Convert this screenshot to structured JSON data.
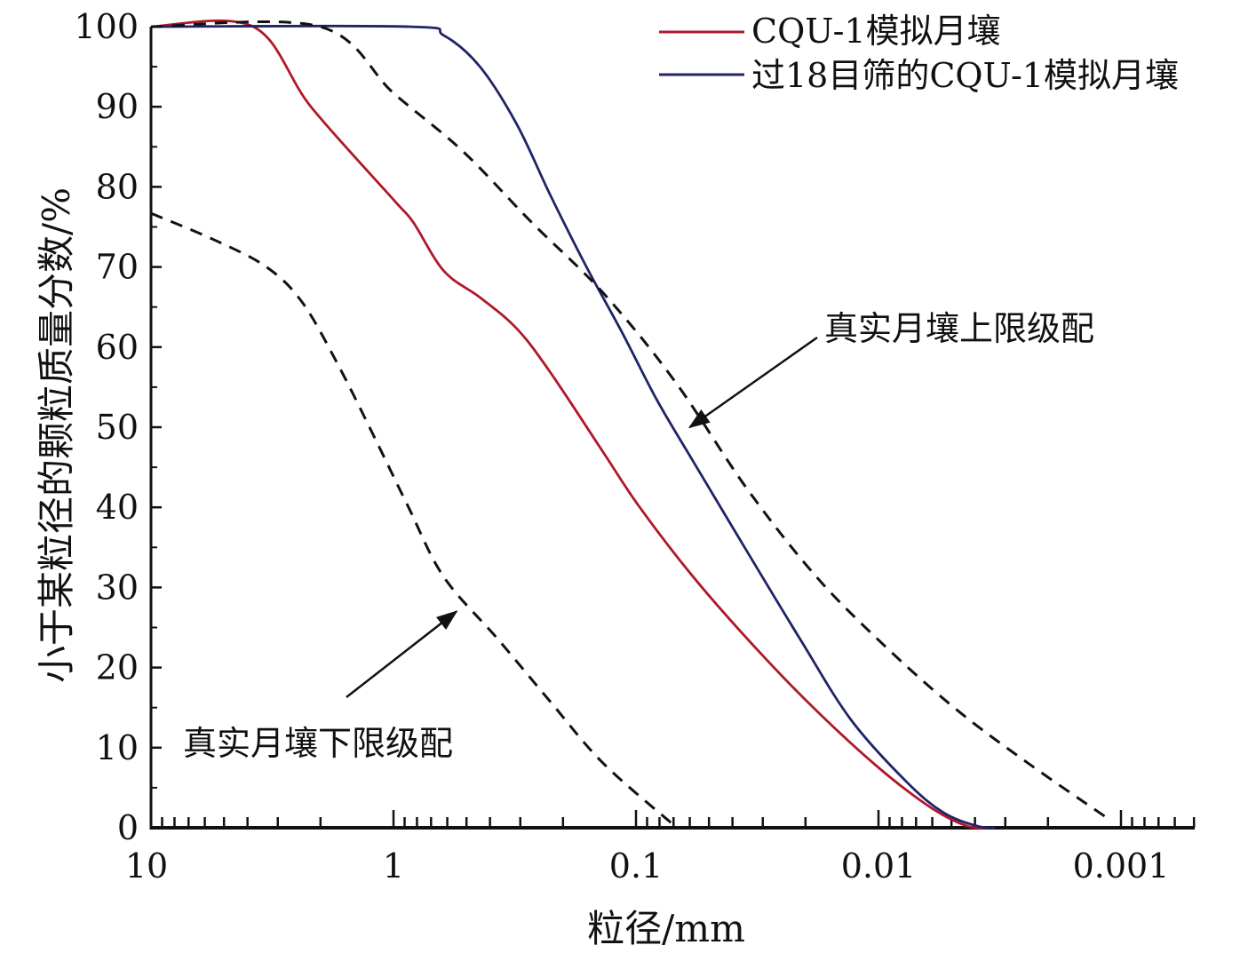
{
  "chart_data": {
    "type": "line",
    "title": "",
    "xlabel": "粒径/mm",
    "ylabel": "小于某粒径的颗粒质量分数/%",
    "xscale": "log",
    "xaxis_reversed": true,
    "xlim": [
      10,
      0.0005
    ],
    "ylim": [
      0,
      100
    ],
    "xticks": [
      10,
      1,
      0.1,
      0.01,
      0.001
    ],
    "xtick_labels": [
      "10",
      "1",
      "0.1",
      "0.01",
      "0.001"
    ],
    "yticks": [
      0,
      10,
      20,
      30,
      40,
      50,
      60,
      70,
      80,
      90,
      100
    ],
    "ytick_labels": [
      "0",
      "10",
      "20",
      "30",
      "40",
      "50",
      "60",
      "70",
      "80",
      "90",
      "100"
    ],
    "grid": false,
    "legend_position": "top-right",
    "series": [
      {
        "name": "CQU-1模拟月壤",
        "color": "#b0182a",
        "style": "solid",
        "x": [
          10,
          3.79,
          2.19,
          1,
          0.83,
          0.62,
          0.44,
          0.31,
          0.225,
          0.136,
          0.097,
          0.058,
          0.032,
          0.018,
          0.0099,
          0.006,
          0.0043,
          0.0035
        ],
        "y": [
          100,
          100,
          90,
          78.4,
          75.6,
          69.5,
          66.2,
          62.3,
          56.8,
          46.8,
          40.1,
          31.3,
          22.4,
          14.6,
          7.4,
          2.4,
          0.2,
          0
        ]
      },
      {
        "name": "过18目筛的CQU-1模拟月壤",
        "color": "#1f2466",
        "style": "solid",
        "x": [
          10,
          0.87,
          0.62,
          0.44,
          0.31,
          0.225,
          0.16,
          0.114,
          0.082,
          0.058,
          0.035,
          0.021,
          0.013,
          0.0077,
          0.0054,
          0.0039,
          0.0033
        ],
        "y": [
          100,
          100,
          98.9,
          95,
          87.8,
          78.9,
          70,
          61.8,
          53.4,
          45.7,
          34.6,
          23.5,
          13.5,
          5.8,
          1.9,
          0.2,
          0
        ]
      },
      {
        "name": "真实月壤上限级配",
        "color": "#111111",
        "style": "dashed",
        "x": [
          10,
          2.01,
          1,
          0.52,
          0.27,
          0.136,
          0.069,
          0.035,
          0.018,
          0.0092,
          0.0047,
          0.0024,
          0.00115
        ],
        "y": [
          100,
          100,
          91.7,
          84.5,
          75.6,
          66.7,
          55.7,
          42.4,
          31.3,
          22.4,
          14.6,
          8,
          1.3
        ]
      },
      {
        "name": "真实月壤下限级配",
        "color": "#111111",
        "style": "dashed",
        "x": [
          10,
          5.5,
          3.34,
          2.38,
          1.7,
          1.21,
          0.87,
          0.62,
          0.37,
          0.225,
          0.136,
          0.069
        ],
        "y": [
          76.7,
          73.4,
          70,
          65.6,
          57.9,
          49,
          40.1,
          31.3,
          23.5,
          15.7,
          8,
          0.2
        ]
      }
    ],
    "legend": [
      "CQU-1模拟月壤",
      "过18目筛的CQU-1模拟月壤"
    ],
    "annotations": [
      {
        "text": "真实月壤上限级配",
        "arrow_to": [
          0.06,
          50
        ]
      },
      {
        "text": "真实月壤下限级配",
        "arrow_to": [
          0.55,
          27
        ]
      }
    ]
  }
}
